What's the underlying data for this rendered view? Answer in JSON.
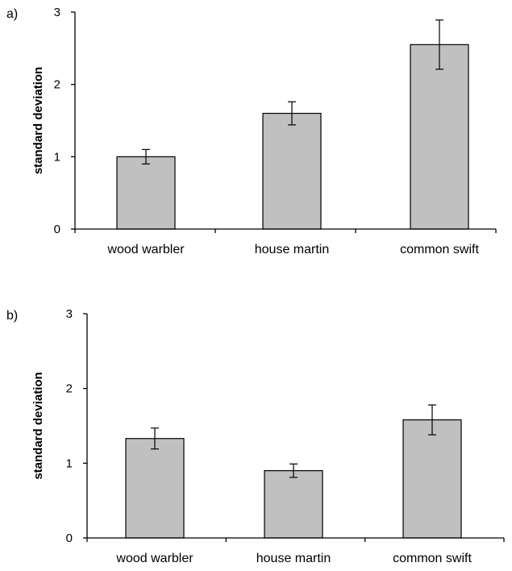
{
  "chart_data": [
    {
      "type": "bar",
      "panel_label": "a)",
      "categories": [
        "wood warbler",
        "house martin",
        "common swift"
      ],
      "values": [
        1.0,
        1.6,
        2.55
      ],
      "errors": [
        0.1,
        0.16,
        0.34
      ],
      "ylabel": "standard deviation",
      "xlabel": "",
      "ylim": [
        0,
        3
      ],
      "yticks": [
        "0",
        "1",
        "2",
        "3"
      ],
      "bar_color": "#c0c0c0",
      "grid": false,
      "legend": "none"
    },
    {
      "type": "bar",
      "panel_label": "b)",
      "categories": [
        "wood warbler",
        "house martin",
        "common swift"
      ],
      "values": [
        1.33,
        0.9,
        1.58
      ],
      "errors": [
        0.14,
        0.09,
        0.2
      ],
      "ylabel": "standard deviation",
      "xlabel": "",
      "ylim": [
        0,
        3
      ],
      "yticks": [
        "0",
        "1",
        "2",
        "3"
      ],
      "bar_color": "#c0c0c0",
      "grid": false,
      "legend": "none"
    }
  ]
}
